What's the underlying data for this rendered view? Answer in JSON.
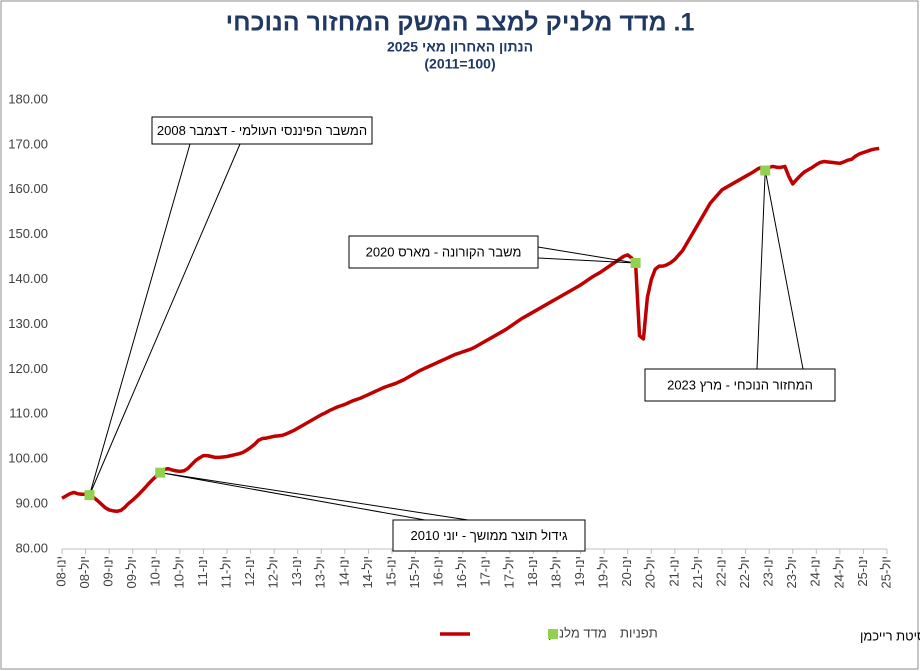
{
  "chart_data": {
    "type": "line",
    "title": "1. מדד מלניק למצב המשק המחזור הנוכחי",
    "subtitle": [
      "הנתון האחרון מאי 2025",
      "(100=2011)"
    ],
    "source": "פרופ' רפי מלניק, אוניברסיטת רייכמן",
    "ylim": [
      80,
      180
    ],
    "yticks": [
      {
        "value": 80,
        "label": "80.00"
      },
      {
        "value": 90,
        "label": "90.00"
      },
      {
        "value": 100,
        "label": "100.00"
      },
      {
        "value": 110,
        "label": "110.00"
      },
      {
        "value": 120,
        "label": "120.00"
      },
      {
        "value": 130,
        "label": "130.00"
      },
      {
        "value": 140,
        "label": "140.00"
      },
      {
        "value": 150,
        "label": "150.00"
      },
      {
        "value": 160,
        "label": "160.00"
      },
      {
        "value": 170,
        "label": "170.00"
      },
      {
        "value": 180,
        "label": "180.00"
      }
    ],
    "grid": false,
    "categories": [
      "ינו-08",
      null,
      null,
      null,
      null,
      null,
      "יול-08",
      null,
      null,
      null,
      null,
      null,
      "ינו-09",
      null,
      null,
      null,
      null,
      null,
      "יול-09",
      null,
      null,
      null,
      null,
      null,
      "ינו-10",
      null,
      null,
      null,
      null,
      null,
      "יול-10",
      null,
      null,
      null,
      null,
      null,
      "ינו-11",
      null,
      null,
      null,
      null,
      null,
      "יול-11",
      null,
      null,
      null,
      null,
      null,
      "ינו-12",
      null,
      null,
      null,
      null,
      null,
      "יול-12",
      null,
      null,
      null,
      null,
      null,
      "ינו-13",
      null,
      null,
      null,
      null,
      null,
      "יול-13",
      null,
      null,
      null,
      null,
      null,
      "ינו-14",
      null,
      null,
      null,
      null,
      null,
      "יול-14",
      null,
      null,
      null,
      null,
      null,
      "ינו-15",
      null,
      null,
      null,
      null,
      null,
      "יול-15",
      null,
      null,
      null,
      null,
      null,
      "ינו-16",
      null,
      null,
      null,
      null,
      null,
      "יול-16",
      null,
      null,
      null,
      null,
      null,
      "ינו-17",
      null,
      null,
      null,
      null,
      null,
      "יול-17",
      null,
      null,
      null,
      null,
      null,
      "ינו-18",
      null,
      null,
      null,
      null,
      null,
      "יול-18",
      null,
      null,
      null,
      null,
      null,
      "ינו-19",
      null,
      null,
      null,
      null,
      null,
      "יול-19",
      null,
      null,
      null,
      null,
      null,
      "ינו-20",
      null,
      null,
      null,
      null,
      null,
      "יול-20",
      null,
      null,
      null,
      null,
      null,
      "ינו-21",
      null,
      null,
      null,
      null,
      null,
      "יול-21",
      null,
      null,
      null,
      null,
      null,
      "ינו-22",
      null,
      null,
      null,
      null,
      null,
      "יול-22",
      null,
      null,
      null,
      null,
      null,
      "ינו-23",
      null,
      null,
      null,
      null,
      null,
      "יול-23",
      null,
      null,
      null,
      null,
      null,
      "ינו-24",
      null,
      null,
      null,
      null,
      null,
      "יול-24",
      null,
      null,
      null,
      null,
      null,
      "ינו-25",
      null,
      null,
      null,
      null,
      null,
      "יול-25"
    ],
    "series": [
      {
        "name": "מדד מלניק",
        "color": "#c00000",
        "values": [
          91.3,
          91.8,
          92.3,
          92.6,
          92.3,
          92.2,
          92.2,
          92.0,
          91.5,
          90.8,
          90.0,
          89.2,
          88.7,
          88.5,
          88.4,
          88.6,
          89.3,
          90.2,
          90.9,
          91.7,
          92.6,
          93.5,
          94.5,
          95.4,
          96.2,
          97.0,
          97.7,
          97.9,
          97.6,
          97.4,
          97.3,
          97.4,
          97.9,
          98.8,
          99.7,
          100.3,
          100.8,
          100.8,
          100.6,
          100.4,
          100.4,
          100.5,
          100.6,
          100.8,
          101.0,
          101.2,
          101.5,
          102.0,
          102.6,
          103.3,
          104.2,
          104.6,
          104.7,
          104.9,
          105.1,
          105.2,
          105.3,
          105.6,
          106.0,
          106.4,
          106.9,
          107.4,
          107.9,
          108.4,
          108.9,
          109.4,
          109.9,
          110.3,
          110.8,
          111.2,
          111.6,
          111.9,
          112.2,
          112.6,
          113.0,
          113.3,
          113.6,
          114.0,
          114.4,
          114.8,
          115.2,
          115.6,
          116.0,
          116.3,
          116.6,
          116.9,
          117.3,
          117.7,
          118.2,
          118.7,
          119.2,
          119.7,
          120.1,
          120.5,
          120.9,
          121.3,
          121.7,
          122.1,
          122.5,
          122.9,
          123.3,
          123.6,
          123.9,
          124.2,
          124.5,
          124.9,
          125.4,
          125.9,
          126.4,
          126.9,
          127.4,
          127.9,
          128.4,
          128.9,
          129.5,
          130.1,
          130.7,
          131.3,
          131.8,
          132.3,
          132.8,
          133.3,
          133.8,
          134.3,
          134.8,
          135.3,
          135.8,
          136.3,
          136.8,
          137.3,
          137.8,
          138.3,
          138.8,
          139.4,
          140.0,
          140.6,
          141.1,
          141.6,
          142.2,
          142.8,
          143.4,
          144.0,
          144.6,
          145.2,
          145.5,
          144.8,
          143.7,
          127.5,
          126.8,
          136.0,
          140.0,
          142.3,
          143.0,
          143.0,
          143.3,
          143.8,
          144.5,
          145.5,
          146.5,
          148.0,
          149.5,
          151.0,
          152.5,
          154.0,
          155.5,
          157.0,
          158.0,
          159.0,
          160.0,
          160.5,
          161.0,
          161.5,
          162.0,
          162.5,
          163.0,
          163.5,
          164.0,
          164.6,
          165.0,
          164.3,
          165.0,
          165.2,
          165.0,
          165.0,
          165.2,
          163.0,
          161.3,
          162.3,
          163.2,
          164.0,
          164.5,
          165.0,
          165.6,
          166.1,
          166.3,
          166.2,
          166.1,
          166.0,
          165.9,
          166.2,
          166.6,
          166.8,
          167.5,
          168.0,
          168.3,
          168.6,
          168.9,
          169.1,
          169.2,
          null,
          null
        ]
      },
      {
        "name": "תפניות",
        "color": "#92d050",
        "marker": "square",
        "values": [
          null,
          null,
          null,
          null,
          null,
          null,
          null,
          92.0,
          null,
          null,
          null,
          null,
          null,
          null,
          null,
          null,
          null,
          null,
          null,
          null,
          null,
          null,
          null,
          null,
          null,
          97.0,
          null,
          null,
          null,
          null,
          null,
          null,
          null,
          null,
          null,
          null,
          null,
          null,
          null,
          null,
          null,
          null,
          null,
          null,
          null,
          null,
          null,
          null,
          null,
          null,
          null,
          null,
          null,
          null,
          null,
          null,
          null,
          null,
          null,
          null,
          null,
          null,
          null,
          null,
          null,
          null,
          null,
          null,
          null,
          null,
          null,
          null,
          null,
          null,
          null,
          null,
          null,
          null,
          null,
          null,
          null,
          null,
          null,
          null,
          null,
          null,
          null,
          null,
          null,
          null,
          null,
          null,
          null,
          null,
          null,
          null,
          null,
          null,
          null,
          null,
          null,
          null,
          null,
          null,
          null,
          null,
          null,
          null,
          null,
          null,
          null,
          null,
          null,
          null,
          null,
          null,
          null,
          null,
          null,
          null,
          null,
          null,
          null,
          null,
          null,
          null,
          null,
          null,
          null,
          null,
          null,
          null,
          null,
          null,
          null,
          null,
          null,
          null,
          null,
          null,
          null,
          null,
          null,
          null,
          null,
          null,
          143.7,
          null,
          null,
          null,
          null,
          null,
          null,
          null,
          null,
          null,
          null,
          null,
          null,
          null,
          null,
          null,
          null,
          null,
          null,
          null,
          null,
          null,
          null,
          null,
          null,
          null,
          null,
          null,
          null,
          null,
          null,
          null,
          null,
          164.3,
          null,
          null,
          null,
          null,
          null,
          null,
          null,
          null,
          null,
          null,
          null,
          null,
          null,
          null,
          null,
          null,
          null,
          null,
          null,
          null,
          null,
          null,
          null,
          null,
          null,
          null,
          null,
          null,
          null,
          null,
          null
        ]
      }
    ],
    "annotations": [
      "המשבר הפיננסי העולמי - דצמבר 2008",
      "גידול תוצר ממושך - יוני 2010",
      "משבר הקורונה - מארס 2020",
      "המחזור הנוכחי - מרץ 2023"
    ]
  }
}
